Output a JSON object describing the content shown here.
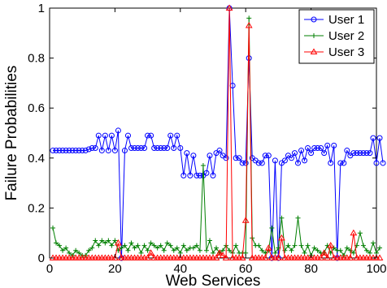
{
  "chart_data": {
    "type": "line",
    "title": "",
    "xlabel": "Web Services",
    "ylabel": "Failure Probabilities",
    "xlim": [
      0,
      100
    ],
    "ylim": [
      0,
      1
    ],
    "xticks": [
      0,
      20,
      40,
      60,
      80,
      100
    ],
    "yticks": [
      0,
      0.2,
      0.4,
      0.6,
      0.8,
      1
    ],
    "grid": false,
    "legend_position": "top-right",
    "series": [
      {
        "name": "User 1",
        "color": "#0000ff",
        "marker": "circle",
        "values": [
          0.43,
          0.43,
          0.43,
          0.43,
          0.43,
          0.43,
          0.43,
          0.43,
          0.43,
          0.43,
          0.43,
          0.435,
          0.44,
          0.44,
          0.49,
          0.43,
          0.49,
          0.43,
          0.49,
          0.43,
          0.51,
          0.0,
          0.43,
          0.49,
          0.44,
          0.44,
          0.44,
          0.44,
          0.44,
          0.49,
          0.49,
          0.44,
          0.44,
          0.44,
          0.44,
          0.44,
          0.49,
          0.44,
          0.49,
          0.44,
          0.33,
          0.42,
          0.33,
          0.41,
          0.33,
          0.33,
          0.33,
          0.34,
          0.41,
          0.33,
          0.42,
          0.43,
          0.41,
          0.4,
          1.0,
          0.69,
          0.4,
          0.4,
          0.38,
          0.38,
          0.8,
          0.4,
          0.39,
          0.38,
          0.38,
          0.41,
          0.41,
          0.0,
          0.39,
          0.0,
          0.38,
          0.39,
          0.41,
          0.4,
          0.42,
          0.38,
          0.43,
          0.39,
          0.44,
          0.42,
          0.44,
          0.44,
          0.44,
          0.42,
          0.45,
          0.38,
          0.45,
          0.0,
          0.38,
          0.38,
          0.43,
          0.41,
          0.42,
          0.42,
          0.42,
          0.42,
          0.42,
          0.42,
          0.48,
          0.38,
          0.48,
          0.38
        ]
      },
      {
        "name": "User 2",
        "color": "#007f00",
        "marker": "plus",
        "values": [
          0.12,
          0.06,
          0.05,
          0.03,
          0.04,
          0.02,
          0.01,
          0.03,
          0.02,
          0.01,
          0.01,
          0.03,
          0.04,
          0.07,
          0.05,
          0.07,
          0.06,
          0.07,
          0.05,
          0.07,
          0.03,
          0.04,
          0.05,
          0.03,
          0.06,
          0.04,
          0.05,
          0.02,
          0.05,
          0.03,
          0.06,
          0.05,
          0.04,
          0.05,
          0.03,
          0.06,
          0.05,
          0.03,
          0.04,
          0.02,
          0.05,
          0.03,
          0.04,
          0.04,
          0.05,
          0.03,
          0.37,
          0.03,
          0.07,
          0.02,
          0.04,
          0.02,
          0.03,
          0.05,
          0.03,
          0.02,
          0.05,
          0.02,
          0.02,
          0.02,
          0.96,
          0.08,
          0.05,
          0.05,
          0.03,
          0.02,
          0.03,
          0.12,
          0.02,
          0.04,
          0.16,
          0.03,
          0.05,
          0.03,
          0.05,
          0.16,
          0.05,
          0.02,
          0.05,
          0.01,
          0.04,
          0.03,
          0.02,
          0.02,
          0.05,
          0.02,
          0.04,
          0.03,
          0.03,
          0.01,
          0.04,
          0.03,
          0.02,
          0.05,
          0.1,
          0.05,
          0.03,
          0.02,
          0.06,
          0.02,
          0.04
        ]
      },
      {
        "name": "User 3",
        "color": "#ff0000",
        "marker": "triangle",
        "values": [
          0,
          0,
          0,
          0,
          0,
          0,
          0,
          0,
          0,
          0,
          0,
          0,
          0,
          0,
          0,
          0,
          0,
          0,
          0,
          0,
          0.06,
          0,
          0,
          0,
          0,
          0,
          0,
          0,
          0,
          0,
          0.02,
          0,
          0,
          0,
          0,
          0,
          0,
          0,
          0,
          0,
          0,
          0,
          0,
          0,
          0,
          0,
          0,
          0,
          0,
          0,
          0,
          0.02,
          0.01,
          0,
          1.0,
          0,
          0,
          0,
          0,
          0.15,
          0.93,
          0,
          0,
          0,
          0,
          0,
          0.04,
          0,
          0,
          0,
          0.08,
          0,
          0,
          0,
          0,
          0,
          0,
          0,
          0,
          0,
          0,
          0,
          0,
          0.02,
          0,
          0.05,
          0,
          0,
          0,
          0,
          0,
          0,
          0.1,
          0,
          0,
          0,
          0,
          0,
          0,
          0,
          0
        ]
      }
    ]
  }
}
